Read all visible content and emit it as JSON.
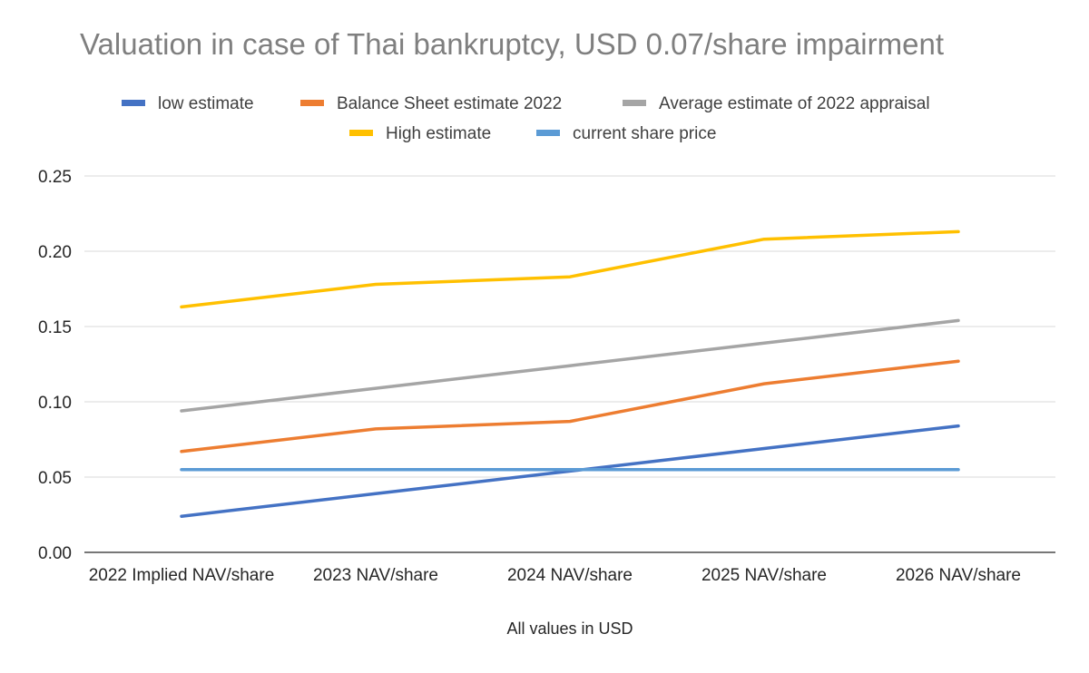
{
  "chart_data": {
    "type": "line",
    "title": "Valuation in case of Thai bankruptcy, USD 0.07/share impairment",
    "xlabel": "All values in USD",
    "ylabel": "",
    "ylim": [
      0,
      0.25
    ],
    "yticks": [
      "0.00",
      "0.05",
      "0.10",
      "0.15",
      "0.20",
      "0.25"
    ],
    "grid": true,
    "legend_position": "top",
    "categories": [
      "2022 Implied NAV/share",
      "2023 NAV/share",
      "2024 NAV/share",
      "2025 NAV/share",
      "2026 NAV/share"
    ],
    "series": [
      {
        "name": "low estimate",
        "color": "#4472c4",
        "values": [
          0.024,
          0.039,
          0.054,
          0.069,
          0.084
        ]
      },
      {
        "name": "Balance Sheet estimate 2022",
        "color": "#ed7d31",
        "values": [
          0.067,
          0.082,
          0.087,
          0.112,
          0.127
        ]
      },
      {
        "name": "Average estimate of 2022 appraisal",
        "color": "#a5a5a5",
        "values": [
          0.094,
          0.109,
          0.124,
          0.139,
          0.154
        ]
      },
      {
        "name": "High estimate",
        "color": "#ffc000",
        "values": [
          0.163,
          0.178,
          0.183,
          0.208,
          0.213
        ]
      },
      {
        "name": "current share price",
        "color": "#5b9bd5",
        "values": [
          0.055,
          0.055,
          0.055,
          0.055,
          0.055
        ]
      }
    ]
  }
}
